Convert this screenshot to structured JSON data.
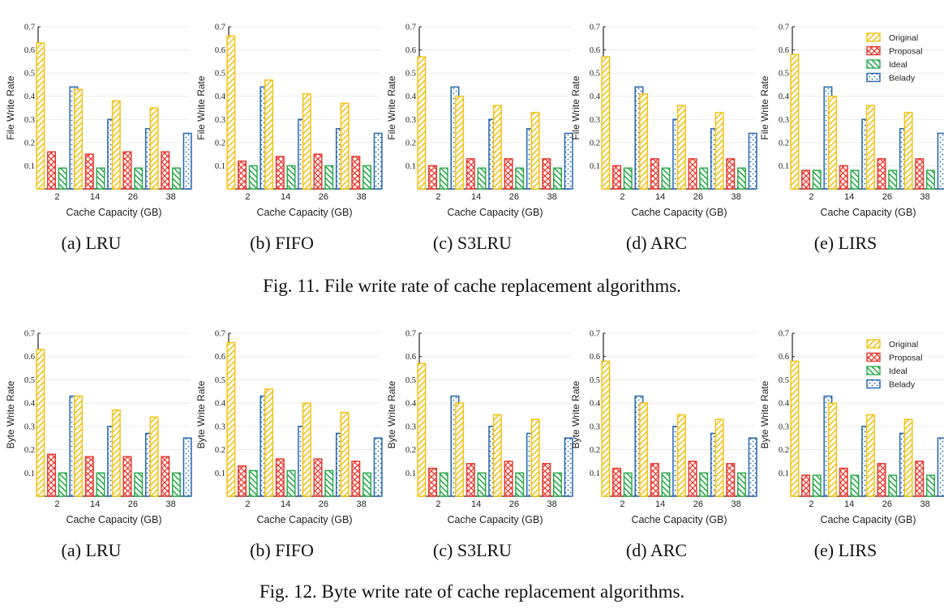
{
  "colors": {
    "Original": "#f2c318",
    "Proposal": "#e8382e",
    "Ideal": "#2dab4f",
    "Belady": "#2566b0"
  },
  "legend": [
    "Original",
    "Proposal",
    "Ideal",
    "Belady"
  ],
  "figures": [
    {
      "caption": "Fig. 11.  File write rate of cache replacement algorithms.",
      "ylabel": "File Write Rate",
      "xlabel": "Cache Capacity (GB)"
    },
    {
      "caption": "Fig. 12.  Byte write rate of cache replacement algorithms.",
      "ylabel": "Byte Write Rate",
      "xlabel": "Cache Capacity (GB)"
    }
  ],
  "chart_data": [
    {
      "figure": 0,
      "type": "bar",
      "subcaption": "(a) LRU",
      "title": "",
      "xlabel": "Cache Capacity (GB)",
      "ylabel": "File Write Rate",
      "categories": [
        "2",
        "14",
        "26",
        "38"
      ],
      "ylim": [
        0,
        0.7
      ],
      "yticks": [
        "0.1",
        "0.2",
        "0.3",
        "0.4",
        "0.5",
        "0.6",
        "0.7"
      ],
      "legend": false,
      "series": [
        {
          "name": "Original",
          "values": [
            0.63,
            0.43,
            0.38,
            0.35
          ]
        },
        {
          "name": "Proposal",
          "values": [
            0.16,
            0.15,
            0.16,
            0.16
          ]
        },
        {
          "name": "Ideal",
          "values": [
            0.09,
            0.09,
            0.09,
            0.09
          ]
        },
        {
          "name": "Belady",
          "values": [
            0.44,
            0.3,
            0.26,
            0.24
          ]
        }
      ]
    },
    {
      "figure": 0,
      "type": "bar",
      "subcaption": "(b) FIFO",
      "title": "",
      "xlabel": "Cache Capacity (GB)",
      "ylabel": "File Write Rate",
      "categories": [
        "2",
        "14",
        "26",
        "38"
      ],
      "ylim": [
        0,
        0.7
      ],
      "yticks": [
        "0.1",
        "0.2",
        "0.3",
        "0.4",
        "0.5",
        "0.6",
        "0.7"
      ],
      "legend": false,
      "series": [
        {
          "name": "Original",
          "values": [
            0.66,
            0.47,
            0.41,
            0.37
          ]
        },
        {
          "name": "Proposal",
          "values": [
            0.12,
            0.14,
            0.15,
            0.14
          ]
        },
        {
          "name": "Ideal",
          "values": [
            0.1,
            0.1,
            0.1,
            0.1
          ]
        },
        {
          "name": "Belady",
          "values": [
            0.44,
            0.3,
            0.26,
            0.24
          ]
        }
      ]
    },
    {
      "figure": 0,
      "type": "bar",
      "subcaption": "(c) S3LRU",
      "title": "",
      "xlabel": "Cache Capacity (GB)",
      "ylabel": "File Write Rate",
      "categories": [
        "2",
        "14",
        "26",
        "38"
      ],
      "ylim": [
        0,
        0.7
      ],
      "yticks": [
        "0.1",
        "0.2",
        "0.3",
        "0.4",
        "0.5",
        "0.6",
        "0.7"
      ],
      "legend": false,
      "series": [
        {
          "name": "Original",
          "values": [
            0.57,
            0.4,
            0.36,
            0.33
          ]
        },
        {
          "name": "Proposal",
          "values": [
            0.1,
            0.13,
            0.13,
            0.13
          ]
        },
        {
          "name": "Ideal",
          "values": [
            0.09,
            0.09,
            0.09,
            0.09
          ]
        },
        {
          "name": "Belady",
          "values": [
            0.44,
            0.3,
            0.26,
            0.24
          ]
        }
      ]
    },
    {
      "figure": 0,
      "type": "bar",
      "subcaption": "(d) ARC",
      "title": "",
      "xlabel": "Cache Capacity (GB)",
      "ylabel": "File Write Rate",
      "categories": [
        "2",
        "14",
        "26",
        "38"
      ],
      "ylim": [
        0,
        0.7
      ],
      "yticks": [
        "0.1",
        "0.2",
        "0.3",
        "0.4",
        "0.5",
        "0.6",
        "0.7"
      ],
      "legend": false,
      "series": [
        {
          "name": "Original",
          "values": [
            0.57,
            0.41,
            0.36,
            0.33
          ]
        },
        {
          "name": "Proposal",
          "values": [
            0.1,
            0.13,
            0.13,
            0.13
          ]
        },
        {
          "name": "Ideal",
          "values": [
            0.09,
            0.09,
            0.09,
            0.09
          ]
        },
        {
          "name": "Belady",
          "values": [
            0.44,
            0.3,
            0.26,
            0.24
          ]
        }
      ]
    },
    {
      "figure": 0,
      "type": "bar",
      "subcaption": "(e) LIRS",
      "title": "",
      "xlabel": "Cache Capacity (GB)",
      "ylabel": "File Write Rate",
      "categories": [
        "2",
        "14",
        "26",
        "38"
      ],
      "ylim": [
        0,
        0.7
      ],
      "yticks": [
        "0.1",
        "0.2",
        "0.3",
        "0.4",
        "0.5",
        "0.6",
        "0.7"
      ],
      "legend": true,
      "legend_position": "top-right",
      "series": [
        {
          "name": "Original",
          "values": [
            0.58,
            0.4,
            0.36,
            0.33
          ]
        },
        {
          "name": "Proposal",
          "values": [
            0.08,
            0.1,
            0.13,
            0.13
          ]
        },
        {
          "name": "Ideal",
          "values": [
            0.08,
            0.08,
            0.08,
            0.08
          ]
        },
        {
          "name": "Belady",
          "values": [
            0.44,
            0.3,
            0.26,
            0.24
          ]
        }
      ]
    },
    {
      "figure": 1,
      "type": "bar",
      "subcaption": "(a) LRU",
      "title": "",
      "xlabel": "Cache Capacity (GB)",
      "ylabel": "Byte Write Rate",
      "categories": [
        "2",
        "14",
        "26",
        "38"
      ],
      "ylim": [
        0,
        0.7
      ],
      "yticks": [
        "0.1",
        "0.2",
        "0.3",
        "0.4",
        "0.5",
        "0.6",
        "0.7"
      ],
      "legend": false,
      "series": [
        {
          "name": "Original",
          "values": [
            0.63,
            0.43,
            0.37,
            0.34
          ]
        },
        {
          "name": "Proposal",
          "values": [
            0.18,
            0.17,
            0.17,
            0.17
          ]
        },
        {
          "name": "Ideal",
          "values": [
            0.1,
            0.1,
            0.1,
            0.1
          ]
        },
        {
          "name": "Belady",
          "values": [
            0.43,
            0.3,
            0.27,
            0.25
          ]
        }
      ]
    },
    {
      "figure": 1,
      "type": "bar",
      "subcaption": "(b) FIFO",
      "title": "",
      "xlabel": "Cache Capacity (GB)",
      "ylabel": "Byte Write Rate",
      "categories": [
        "2",
        "14",
        "26",
        "38"
      ],
      "ylim": [
        0,
        0.7
      ],
      "yticks": [
        "0.1",
        "0.2",
        "0.3",
        "0.4",
        "0.5",
        "0.6",
        "0.7"
      ],
      "legend": false,
      "series": [
        {
          "name": "Original",
          "values": [
            0.66,
            0.46,
            0.4,
            0.36
          ]
        },
        {
          "name": "Proposal",
          "values": [
            0.13,
            0.16,
            0.16,
            0.15
          ]
        },
        {
          "name": "Ideal",
          "values": [
            0.11,
            0.11,
            0.11,
            0.1
          ]
        },
        {
          "name": "Belady",
          "values": [
            0.43,
            0.3,
            0.27,
            0.25
          ]
        }
      ]
    },
    {
      "figure": 1,
      "type": "bar",
      "subcaption": "(c) S3LRU",
      "title": "",
      "xlabel": "Cache Capacity (GB)",
      "ylabel": "Byte Write Rate",
      "categories": [
        "2",
        "14",
        "26",
        "38"
      ],
      "ylim": [
        0,
        0.7
      ],
      "yticks": [
        "0.1",
        "0.2",
        "0.3",
        "0.4",
        "0.5",
        "0.6",
        "0.7"
      ],
      "legend": false,
      "series": [
        {
          "name": "Original",
          "values": [
            0.57,
            0.4,
            0.35,
            0.33
          ]
        },
        {
          "name": "Proposal",
          "values": [
            0.12,
            0.14,
            0.15,
            0.14
          ]
        },
        {
          "name": "Ideal",
          "values": [
            0.1,
            0.1,
            0.1,
            0.1
          ]
        },
        {
          "name": "Belady",
          "values": [
            0.43,
            0.3,
            0.27,
            0.25
          ]
        }
      ]
    },
    {
      "figure": 1,
      "type": "bar",
      "subcaption": "(d) ARC",
      "title": "",
      "xlabel": "Cache Capacity (GB)",
      "ylabel": "Byte Write Rate",
      "categories": [
        "2",
        "14",
        "26",
        "38"
      ],
      "ylim": [
        0,
        0.7
      ],
      "yticks": [
        "0.1",
        "0.2",
        "0.3",
        "0.4",
        "0.5",
        "0.6",
        "0.7"
      ],
      "legend": false,
      "series": [
        {
          "name": "Original",
          "values": [
            0.58,
            0.4,
            0.35,
            0.33
          ]
        },
        {
          "name": "Proposal",
          "values": [
            0.12,
            0.14,
            0.15,
            0.14
          ]
        },
        {
          "name": "Ideal",
          "values": [
            0.1,
            0.1,
            0.1,
            0.1
          ]
        },
        {
          "name": "Belady",
          "values": [
            0.43,
            0.3,
            0.27,
            0.25
          ]
        }
      ]
    },
    {
      "figure": 1,
      "type": "bar",
      "subcaption": "(e) LIRS",
      "title": "",
      "xlabel": "Cache Capacity (GB)",
      "ylabel": "Byte Write Rate",
      "categories": [
        "2",
        "14",
        "26",
        "38"
      ],
      "ylim": [
        0,
        0.7
      ],
      "yticks": [
        "0.1",
        "0.2",
        "0.3",
        "0.4",
        "0.5",
        "0.6",
        "0.7"
      ],
      "legend": true,
      "legend_position": "top-right",
      "series": [
        {
          "name": "Original",
          "values": [
            0.58,
            0.4,
            0.35,
            0.33
          ]
        },
        {
          "name": "Proposal",
          "values": [
            0.09,
            0.12,
            0.14,
            0.15
          ]
        },
        {
          "name": "Ideal",
          "values": [
            0.09,
            0.09,
            0.09,
            0.09
          ]
        },
        {
          "name": "Belady",
          "values": [
            0.43,
            0.3,
            0.27,
            0.25
          ]
        }
      ]
    }
  ]
}
